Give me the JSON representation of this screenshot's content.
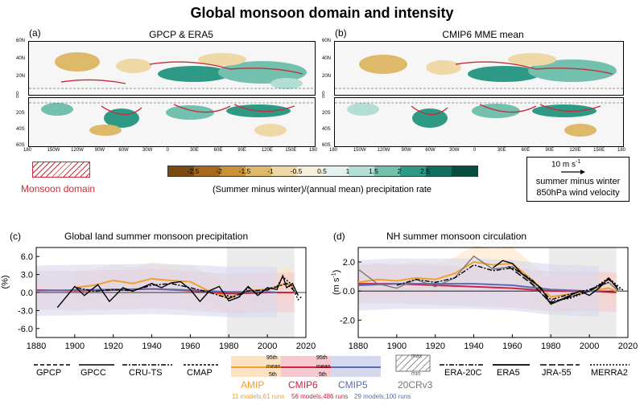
{
  "title": "Global monsoon domain and intensity",
  "panel_a": {
    "label": "(a)",
    "title": "GPCP & ERA5"
  },
  "panel_b": {
    "label": "(b)",
    "title": "CMIP6 MME mean"
  },
  "map_lat_top": [
    "60N",
    "40N",
    "20N",
    "0"
  ],
  "map_lat_bottom": [
    "0",
    "20S",
    "40S",
    "60S"
  ],
  "map_lon": [
    "180",
    "150W",
    "120W",
    "90W",
    "60W",
    "30W",
    "0",
    "30E",
    "60E",
    "90E",
    "120E",
    "150E",
    "180"
  ],
  "colorbar": {
    "ticks": [
      "-2.5",
      "-2",
      "-1.5",
      "-1",
      "-0.5",
      "0.5",
      "1",
      "1.5",
      "2",
      "2.5"
    ],
    "colors": [
      "#7a4a12",
      "#a8691c",
      "#c99239",
      "#dfb96a",
      "#eed9a6",
      "#f7f0de",
      "#e6f2ee",
      "#b3ded3",
      "#72c0ad",
      "#2e9a85",
      "#0f6e5c",
      "#064c3f"
    ],
    "label": "(Summer minus winter)/(annual mean) precipitation rate"
  },
  "monsoon_domain_label": "Monsoon domain",
  "wind_key": {
    "scale": "10 m s",
    "scale_sup": "-1",
    "line1": "summer minus winter",
    "line2": "850hPa wind velocity"
  },
  "panel_c": {
    "label": "(c)",
    "title": "Global land summer monsoon precipitation",
    "ylabel": "(%)"
  },
  "panel_d": {
    "label": "(d)",
    "title": "NH summer monsoon circulation",
    "ylabel": "(m s",
    "ylabel_sup": "-1",
    "ylabel_end": ")"
  },
  "chart_data": [
    {
      "type": "line",
      "title": "Global land summer monsoon precipitation",
      "ylabel": "(%)",
      "xlim": [
        1880,
        2020
      ],
      "ylim": [
        -7.5,
        7.5
      ],
      "xticks": [
        "1880",
        "1900",
        "1920",
        "1940",
        "1960",
        "1980",
        "2000",
        "2020"
      ],
      "yticks": [
        "6.0",
        "3.0",
        "0.0",
        "-3.0",
        "-6.0"
      ],
      "ytick_values": [
        6,
        3,
        0,
        -3,
        -6
      ],
      "shaded_period": [
        1979,
        2014
      ],
      "series": [
        {
          "name": "AMIP",
          "color": "#f0a030",
          "x": [
            1900,
            1910,
            1920,
            1930,
            1940,
            1950,
            1960,
            1970,
            1980,
            1990,
            2000,
            2005,
            2010,
            2014
          ],
          "values": [
            0.8,
            1.2,
            2.0,
            1.5,
            2.3,
            2.0,
            1.8,
            0.2,
            -0.8,
            0.3,
            0.5,
            1.0,
            1.6,
            0.8
          ]
        },
        {
          "name": "CMIP6",
          "color": "#cc2244",
          "x": [
            1880,
            1900,
            1920,
            1940,
            1960,
            1980,
            2000,
            2014
          ],
          "values": [
            0.4,
            0.3,
            0.4,
            0.6,
            0.3,
            -0.2,
            0.0,
            0.0
          ]
        },
        {
          "name": "CMIP5",
          "color": "#5a6bb0",
          "x": [
            1880,
            1900,
            1920,
            1940,
            1960,
            1980,
            2000,
            2005
          ],
          "values": [
            0.3,
            0.4,
            0.5,
            0.6,
            0.4,
            0.1,
            0.1,
            0.0
          ]
        },
        {
          "name": "GPCC",
          "color": "#000000",
          "x": [
            1891,
            1900,
            1905,
            1912,
            1918,
            1925,
            1930,
            1940,
            1945,
            1950,
            1955,
            1960,
            1965,
            1970,
            1975,
            1980,
            1985,
            1990,
            1995,
            2000,
            2005,
            2008,
            2010,
            2013,
            2016
          ],
          "values": [
            -2.5,
            1.0,
            -0.5,
            1.3,
            -1.5,
            0.8,
            0.2,
            1.5,
            0.8,
            1.6,
            1.8,
            0.5,
            -1.5,
            0.3,
            1.0,
            -1.4,
            -0.8,
            1.0,
            -0.5,
            0.8,
            0.5,
            2.8,
            0.8,
            1.5,
            -0.5
          ]
        },
        {
          "name": "CRU-TS",
          "color": "#000000",
          "x": [
            1901,
            1910,
            1920,
            1930,
            1940,
            1950,
            1960,
            1970,
            1980,
            1990,
            2000,
            2010,
            2016
          ],
          "values": [
            0.8,
            0.2,
            0.5,
            0.3,
            1.2,
            1.5,
            0.8,
            0.0,
            -1.0,
            0.3,
            0.4,
            1.5,
            -0.4
          ]
        },
        {
          "name": "GPCP",
          "color": "#000000",
          "x": [
            1979,
            1985,
            1990,
            1995,
            2000,
            2005,
            2008,
            2012,
            2016,
            2018
          ],
          "values": [
            -0.5,
            -0.9,
            0.8,
            -0.2,
            0.6,
            1.0,
            2.6,
            1.5,
            -1.2,
            -0.6
          ]
        }
      ]
    },
    {
      "type": "line",
      "title": "NH summer monsoon circulation",
      "ylabel": "(m s-1)",
      "xlim": [
        1880,
        2020
      ],
      "ylim": [
        -3.2,
        3.0
      ],
      "xticks": [
        "1880",
        "1900",
        "1920",
        "1940",
        "1960",
        "1980",
        "2000",
        "2020"
      ],
      "yticks": [
        "2.0",
        "0.0",
        "-2.0"
      ],
      "ytick_values": [
        2,
        0,
        -2
      ],
      "shaded_period": [
        1979,
        2014
      ],
      "series": [
        {
          "name": "AMIP",
          "color": "#f0a030",
          "x": [
            1880,
            1890,
            1900,
            1910,
            1920,
            1930,
            1940,
            1950,
            1960,
            1970,
            1980,
            1990,
            2000,
            2010,
            2014
          ],
          "values": [
            0.6,
            0.8,
            0.7,
            0.9,
            0.8,
            1.2,
            2.0,
            1.8,
            1.9,
            0.8,
            -0.4,
            -0.2,
            0.0,
            0.2,
            0.0
          ]
        },
        {
          "name": "CMIP6",
          "color": "#cc2244",
          "x": [
            1880,
            1900,
            1920,
            1940,
            1960,
            1980,
            2000,
            2014
          ],
          "values": [
            0.5,
            0.5,
            0.4,
            0.3,
            0.2,
            0.0,
            0.0,
            -0.1
          ]
        },
        {
          "name": "CMIP5",
          "color": "#5a6bb0",
          "x": [
            1880,
            1900,
            1920,
            1940,
            1960,
            1980,
            2000,
            2005
          ],
          "values": [
            0.4,
            0.5,
            0.5,
            0.5,
            0.4,
            0.1,
            0.0,
            0.0
          ]
        },
        {
          "name": "20CRv3",
          "color": "#777777",
          "x": [
            1880,
            1890,
            1900,
            1910,
            1920,
            1930,
            1940,
            1950,
            1960,
            1970,
            1980,
            1990,
            2000,
            2010,
            2015
          ],
          "values": [
            1.5,
            0.5,
            0.2,
            0.8,
            0.3,
            0.9,
            2.4,
            1.5,
            1.7,
            0.6,
            -0.9,
            -0.4,
            0.0,
            0.6,
            0.0
          ]
        },
        {
          "name": "ERA-20C",
          "color": "#000000",
          "x": [
            1900,
            1910,
            1920,
            1930,
            1940,
            1950,
            1960,
            1970,
            1980,
            1990,
            2000,
            2010
          ],
          "values": [
            0.4,
            0.8,
            0.6,
            0.9,
            1.8,
            1.4,
            1.6,
            0.8,
            -0.6,
            -0.2,
            0.1,
            0.6
          ]
        },
        {
          "name": "ERA5",
          "color": "#000000",
          "x": [
            1950,
            1955,
            1960,
            1965,
            1970,
            1975,
            1980,
            1985,
            1990,
            1995,
            2000,
            2005,
            2010,
            2015
          ],
          "values": [
            1.6,
            2.1,
            1.9,
            1.2,
            0.7,
            0.2,
            -0.9,
            -0.6,
            -0.3,
            0.0,
            -0.3,
            0.2,
            0.9,
            0.1
          ]
        },
        {
          "name": "JRA-55",
          "color": "#000000",
          "x": [
            1958,
            1965,
            1970,
            1980,
            1990,
            2000,
            2010,
            2016
          ],
          "values": [
            1.7,
            1.0,
            0.5,
            -0.8,
            -0.4,
            0.0,
            0.8,
            0.1
          ]
        },
        {
          "name": "MERRA2",
          "color": "#000000",
          "x": [
            1980,
            1990,
            2000,
            2010,
            2018
          ],
          "values": [
            -0.7,
            -0.5,
            0.0,
            0.9,
            0.0
          ]
        }
      ]
    }
  ],
  "legend": {
    "GPCP": "GPCP",
    "GPCC": "GPCC",
    "CRU_TS": "CRU-TS",
    "CMAP": "CMAP",
    "pct95": "95th",
    "mean": "mean",
    "pct5": "5th",
    "max": "max",
    "min": "min",
    "AMIP": "AMIP",
    "CMIP6": "CMIP6",
    "CMIP5": "CMIP5",
    "CR20": "20CRv3",
    "ERA20C": "ERA-20C",
    "ERA5": "ERA5",
    "JRA55": "JRA-55",
    "MERRA2": "MERRA2",
    "AMIP_runs": "11 models,61 runs",
    "CMIP6_runs": "56 models,486 runs",
    "CMIP5_runs": "29 models,100 runs"
  }
}
